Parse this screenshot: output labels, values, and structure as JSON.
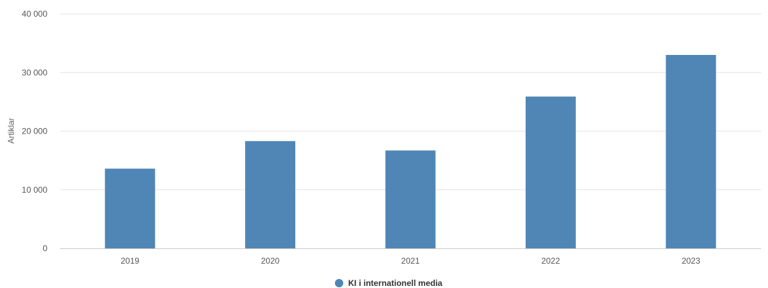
{
  "chart_data": {
    "type": "bar",
    "categories": [
      "2019",
      "2020",
      "2021",
      "2022",
      "2023"
    ],
    "series": [
      {
        "name": "KI i internationell media",
        "values": [
          13600,
          18300,
          16700,
          25900,
          33000
        ],
        "color": "#4f86b5"
      }
    ],
    "ylabel": "Artiklar",
    "ylim": [
      0,
      40000
    ],
    "yticks": [
      0,
      10000,
      20000,
      30000,
      40000
    ],
    "ytick_labels": [
      "0",
      "10 000",
      "20 000",
      "30 000",
      "40 000"
    ],
    "grid": true,
    "legend": "bottom-center"
  }
}
